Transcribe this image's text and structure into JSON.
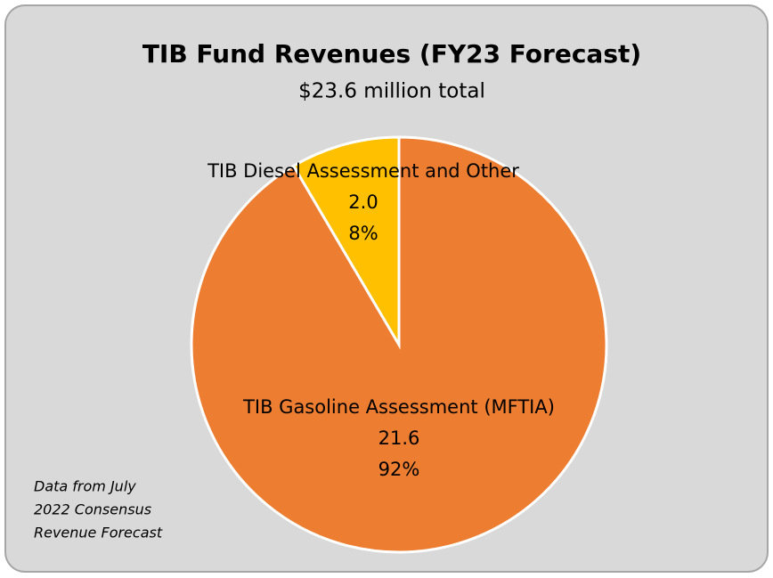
{
  "chart_data": {
    "type": "pie",
    "title": "TIB Fund Revenues (FY23 Forecast)",
    "subtitle": "$23.6 million total",
    "categories": [
      "TIB Gasoline Assessment (MFTIA)",
      "TIB Diesel Assessment and Other"
    ],
    "values": [
      21.6,
      2.0
    ],
    "value_labels": [
      "21.6",
      "2.0"
    ],
    "percent_labels": [
      "92%",
      "8%"
    ],
    "colors": [
      "#ed7d31",
      "#ffc000"
    ],
    "note": [
      "Data from July",
      "2022 Consensus",
      "Revenue Forecast"
    ]
  }
}
